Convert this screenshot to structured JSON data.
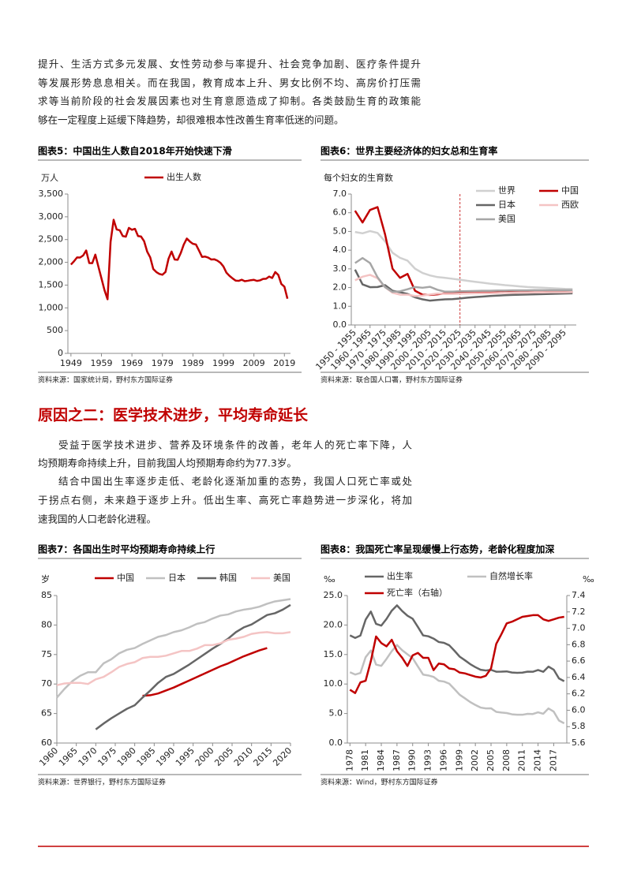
{
  "text": {
    "para1": [
      "提升、生活方式多元发展、女性劳动参与率提升、社会竞争加剧、医疗条件提升",
      "等发展形势息息相关。而在我国，教育成本上升、男女比例不均、高房价打压需",
      "求等当前阶段的社会发展因素也对生育意愿造成了抑制。各类鼓励生育的政策能",
      "够在一定程度上延缓下降趋势，却很难根本性改善生育率低迷的问题。"
    ],
    "heading": "原因之二：医学技术进步，平均寿命延长",
    "para2": [
      "受益于医学技术进步、营养及环境条件的改善，老年人的死亡率下降，人",
      "均预期寿命持续上升，目前我国人均预期寿命约为77.3岁。"
    ],
    "para3": [
      "结合中国出生率逐步走低、老龄化逐渐加重的态势，我国人口死亡率或处",
      "于拐点右侧，未来趋于逐步上升。低出生率、高死亡率趋势进一步深化，将加",
      "速我国的人口老龄化进程。"
    ]
  },
  "chart_data": [
    {
      "type": "line",
      "title": "图表5：中国出生人数自2018年开始快速下滑",
      "source": "资料来源：国家统计局，野村东方国际证券",
      "y_unit": "万人",
      "x": [
        1949,
        1950,
        1951,
        1952,
        1953,
        1954,
        1955,
        1956,
        1957,
        1958,
        1959,
        1960,
        1961,
        1962,
        1963,
        1964,
        1965,
        1966,
        1967,
        1968,
        1969,
        1970,
        1971,
        1972,
        1973,
        1974,
        1975,
        1976,
        1977,
        1978,
        1979,
        1980,
        1981,
        1982,
        1983,
        1984,
        1985,
        1986,
        1987,
        1988,
        1989,
        1990,
        1991,
        1992,
        1993,
        1994,
        1995,
        1996,
        1997,
        1998,
        1999,
        2000,
        2001,
        2002,
        2003,
        2004,
        2005,
        2006,
        2007,
        2008,
        2009,
        2010,
        2011,
        2012,
        2013,
        2014,
        2015,
        2016,
        2017,
        2018,
        2019,
        2020
      ],
      "xlim": [
        1948,
        2021
      ],
      "xticks": [
        1949,
        1959,
        1969,
        1979,
        1989,
        1999,
        2009,
        2019
      ],
      "ylim": [
        0,
        3500
      ],
      "yticks": [
        0,
        500,
        {
          "value": 1000,
          "label": "1,000"
        },
        {
          "value": 1500,
          "label": "1,500"
        },
        {
          "value": 2000,
          "label": "2,000"
        },
        {
          "value": 2500,
          "label": "2,500"
        },
        {
          "value": 3000,
          "label": "3,000"
        },
        {
          "value": 3500,
          "label": "3,500"
        }
      ],
      "series": [
        {
          "name": "出生人数",
          "color": "#c00000",
          "values": [
            1950,
            2023,
            2107,
            2105,
            2151,
            2260,
            1984,
            1982,
            2169,
            1906,
            1650,
            1389,
            1189,
            2451,
            2934,
            2721,
            2704,
            2577,
            2563,
            2757,
            2715,
            2736,
            2578,
            2566,
            2463,
            2235,
            2109,
            1853,
            1786,
            1745,
            1727,
            1787,
            2078,
            2237,
            2062,
            2056,
            2202,
            2391,
            2522,
            2457,
            2407,
            2391,
            2258,
            2119,
            2126,
            2104,
            2063,
            2067,
            2038,
            1991,
            1909,
            1771,
            1702,
            1647,
            1599,
            1593,
            1617,
            1585,
            1595,
            1608,
            1615,
            1592,
            1604,
            1635,
            1640,
            1687,
            1655,
            1786,
            1723,
            1523,
            1465,
            1200
          ]
        }
      ]
    },
    {
      "type": "line",
      "title": "图表6：世界主要经济体的妇女总和生育率",
      "source": "资料来源：联合国人口署，野村东方国际证券",
      "y_unit": "每个妇女的生育数",
      "categories": [
        "1950 - 1955",
        null,
        "1960 - 1965",
        null,
        "1970 - 1975",
        null,
        "1980 - 1985",
        null,
        "1990 - 1995",
        null,
        "2000 - 2005",
        null,
        "2010 - 2015",
        null,
        "2020 - 2025",
        null,
        "2030 - 2035",
        null,
        "2040 - 2045",
        null,
        "2050 - 2055",
        null,
        "2060 - 2065",
        null,
        "2070 - 2075",
        null,
        "2080 - 2085",
        null,
        "2090 - 2095",
        null
      ],
      "forecast_from": "2020 - 2025",
      "ylim": [
        0,
        7
      ],
      "yticks": [
        {
          "value": 0,
          "label": "0.0"
        },
        {
          "value": 1,
          "label": "1.0"
        },
        {
          "value": 2,
          "label": "2.0"
        },
        {
          "value": 3,
          "label": "3.0"
        },
        {
          "value": 4,
          "label": "4.0"
        },
        {
          "value": 5,
          "label": "5.0"
        },
        {
          "value": 6,
          "label": "6.0"
        },
        {
          "value": 7,
          "label": "7.0"
        }
      ],
      "series": [
        {
          "name": "世界",
          "color": "#d0d0d0",
          "values": [
            4.97,
            4.9,
            5.02,
            4.92,
            4.47,
            3.86,
            3.59,
            3.44,
            3.01,
            2.78,
            2.65,
            2.56,
            2.52,
            2.47,
            2.42,
            2.36,
            2.31,
            2.26,
            2.21,
            2.17,
            2.13,
            2.1,
            2.06,
            2.03,
            2.01,
            1.99,
            1.97,
            1.95,
            1.93,
            1.92
          ]
        },
        {
          "name": "中国",
          "color": "#c00000",
          "values": [
            6.11,
            5.48,
            6.15,
            6.3,
            4.85,
            3.01,
            2.52,
            2.73,
            1.83,
            1.62,
            1.61,
            1.64,
            1.69,
            1.7,
            1.71,
            1.72,
            1.72,
            1.73,
            1.73,
            1.74,
            1.74,
            1.74,
            1.75,
            1.75,
            1.75,
            1.75,
            1.76,
            1.76,
            1.76,
            1.76
          ]
        },
        {
          "name": "日本",
          "color": "#666666",
          "values": [
            2.96,
            2.17,
            2.02,
            2.03,
            2.13,
            1.83,
            1.75,
            1.66,
            1.48,
            1.37,
            1.3,
            1.34,
            1.37,
            1.38,
            1.42,
            1.46,
            1.49,
            1.52,
            1.55,
            1.57,
            1.59,
            1.61,
            1.62,
            1.63,
            1.64,
            1.65,
            1.66,
            1.67,
            1.68,
            1.69
          ]
        },
        {
          "name": "西欧",
          "color": "#f4c4c4",
          "values": [
            2.39,
            2.58,
            2.68,
            2.5,
            2.02,
            1.72,
            1.62,
            1.62,
            1.55,
            1.57,
            1.63,
            1.68,
            1.66,
            1.66,
            1.67,
            1.68,
            1.69,
            1.7,
            1.7,
            1.71,
            1.72,
            1.72,
            1.73,
            1.73,
            1.74,
            1.74,
            1.75,
            1.75,
            1.75,
            1.76
          ]
        },
        {
          "name": "美国",
          "color": "#a6a6a6",
          "values": [
            3.31,
            3.58,
            3.31,
            2.55,
            2.02,
            1.77,
            1.8,
            1.91,
            2.03,
            1.99,
            2.04,
            1.88,
            1.78,
            1.78,
            1.8,
            1.81,
            1.82,
            1.83,
            1.83,
            1.84,
            1.84,
            1.85,
            1.85,
            1.85,
            1.86,
            1.86,
            1.86,
            1.86,
            1.86,
            1.86
          ]
        }
      ]
    },
    {
      "type": "line",
      "title": "图表7：各国出生时平均预期寿命持续上行",
      "source": "资料来源：世界银行，野村东方国际证券",
      "y_unit": "岁",
      "x": [
        1960,
        1962,
        1964,
        1966,
        1968,
        1970,
        1972,
        1974,
        1976,
        1978,
        1980,
        1982,
        1984,
        1986,
        1988,
        1990,
        1992,
        1994,
        1996,
        1998,
        2000,
        2002,
        2004,
        2006,
        2008,
        2010,
        2012,
        2014,
        2016,
        2018,
        2020
      ],
      "xlim": [
        1960,
        2020
      ],
      "xticks": [
        1960,
        1965,
        1970,
        1975,
        1980,
        1985,
        1990,
        1995,
        2000,
        2005,
        2010,
        2015,
        2020
      ],
      "ylim": [
        60,
        85
      ],
      "yticks": [
        60,
        65,
        70,
        75,
        80,
        85
      ],
      "series": [
        {
          "name": "中国",
          "color": "#c00000",
          "values": [
            null,
            null,
            null,
            null,
            null,
            null,
            null,
            null,
            null,
            null,
            null,
            68.0,
            68.1,
            68.4,
            68.9,
            69.4,
            70.0,
            70.6,
            71.2,
            71.8,
            72.4,
            73.0,
            73.5,
            74.1,
            74.7,
            75.2,
            75.7,
            76.1,
            null,
            null,
            null
          ]
        },
        {
          "name": "日本",
          "color": "#c0c0c0",
          "values": [
            67.7,
            69.2,
            70.5,
            71.4,
            72.0,
            72.0,
            73.5,
            74.2,
            75.2,
            75.8,
            76.1,
            76.8,
            77.4,
            78.0,
            78.3,
            78.8,
            79.1,
            79.6,
            80.2,
            80.5,
            81.1,
            81.6,
            81.8,
            82.3,
            82.6,
            82.8,
            83.1,
            83.6,
            84.0,
            84.2,
            84.4
          ]
        },
        {
          "name": "韩国",
          "color": "#666666",
          "values": [
            null,
            null,
            null,
            null,
            null,
            62.3,
            63.3,
            64.2,
            65.0,
            65.8,
            66.4,
            67.7,
            68.9,
            70.2,
            71.2,
            71.7,
            72.5,
            73.3,
            74.2,
            75.1,
            76.0,
            76.8,
            77.7,
            78.8,
            79.6,
            80.1,
            80.9,
            81.7,
            82.0,
            82.6,
            83.4
          ]
        },
        {
          "name": "美国",
          "color": "#f4c4c4",
          "values": [
            69.8,
            70.1,
            70.2,
            70.2,
            70.0,
            70.8,
            71.2,
            72.0,
            72.9,
            73.4,
            73.7,
            74.4,
            74.6,
            74.6,
            74.8,
            75.2,
            75.6,
            75.6,
            76.0,
            76.6,
            76.6,
            76.9,
            77.5,
            77.7,
            78.0,
            78.5,
            78.7,
            78.8,
            78.6,
            78.6,
            78.8
          ]
        }
      ]
    },
    {
      "type": "line",
      "title": "图表8：我国死亡率呈现缓慢上行态势，老龄化程度加深",
      "source": "资料来源：Wind，野村东方国际证券",
      "y_unit": "‰",
      "y2_unit": "‰",
      "x": [
        1978,
        1979,
        1980,
        1981,
        1982,
        1983,
        1984,
        1985,
        1986,
        1987,
        1988,
        1989,
        1990,
        1991,
        1992,
        1993,
        1994,
        1995,
        1996,
        1997,
        1998,
        1999,
        2000,
        2001,
        2002,
        2003,
        2004,
        2005,
        2006,
        2007,
        2008,
        2009,
        2010,
        2011,
        2012,
        2013,
        2014,
        2015,
        2016,
        2017,
        2018,
        2019
      ],
      "xlim": [
        1977.5,
        2019.5
      ],
      "xticks": [
        1978,
        1981,
        1984,
        1987,
        1990,
        1993,
        1996,
        1999,
        2002,
        2005,
        2008,
        2011,
        2014,
        2017
      ],
      "ylim": [
        0,
        25
      ],
      "yticks": [
        {
          "value": 0,
          "label": "0.0"
        },
        {
          "value": 5,
          "label": "5.0"
        },
        {
          "value": 10,
          "label": "10.0"
        },
        {
          "value": 15,
          "label": "15.0"
        },
        {
          "value": 20,
          "label": "20.0"
        },
        {
          "value": 25,
          "label": "25.0"
        }
      ],
      "y2lim": [
        5.6,
        7.4
      ],
      "y2ticks": [
        5.6,
        5.8,
        {
          "value": 6,
          "label": "6.0"
        },
        6.2,
        6.4,
        6.6,
        6.8,
        {
          "value": 7,
          "label": "7.0"
        },
        7.2,
        7.4
      ],
      "series": [
        {
          "name": "出生率",
          "color": "#666666",
          "values": [
            18.25,
            17.82,
            18.21,
            20.91,
            22.28,
            20.19,
            19.9,
            21.04,
            22.43,
            23.33,
            22.37,
            21.58,
            21.06,
            19.68,
            18.24,
            18.09,
            17.7,
            17.12,
            16.98,
            16.57,
            15.64,
            14.64,
            14.03,
            13.38,
            12.86,
            12.41,
            12.29,
            12.4,
            12.09,
            12.1,
            12.14,
            11.95,
            11.9,
            11.93,
            12.1,
            12.08,
            12.37,
            12.07,
            12.95,
            12.43,
            10.94,
            10.48
          ]
        },
        {
          "name": "自然增长率",
          "color": "#c0c0c0",
          "values": [
            12.0,
            11.61,
            11.87,
            14.55,
            15.68,
            13.29,
            13.08,
            14.26,
            15.57,
            16.61,
            15.73,
            15.04,
            14.39,
            12.98,
            11.6,
            11.45,
            11.21,
            10.55,
            10.42,
            10.06,
            9.14,
            8.18,
            7.58,
            6.95,
            6.45,
            6.01,
            5.87,
            5.89,
            5.28,
            5.17,
            5.08,
            4.87,
            4.79,
            4.79,
            4.95,
            4.92,
            5.21,
            4.96,
            5.86,
            5.32,
            3.81,
            3.34
          ]
        },
        {
          "name": "死亡率（右轴）",
          "color": "#c00000",
          "axis": "y2",
          "values": [
            6.25,
            6.21,
            6.34,
            6.36,
            6.6,
            6.9,
            6.82,
            6.78,
            6.86,
            6.72,
            6.64,
            6.54,
            6.67,
            6.7,
            6.64,
            6.64,
            6.49,
            6.57,
            6.56,
            6.51,
            6.5,
            6.46,
            6.45,
            6.43,
            6.41,
            6.4,
            6.42,
            6.51,
            6.81,
            6.93,
            7.06,
            7.08,
            7.11,
            7.14,
            7.15,
            7.16,
            7.16,
            7.11,
            7.09,
            7.11,
            7.13,
            7.14
          ]
        }
      ]
    }
  ]
}
